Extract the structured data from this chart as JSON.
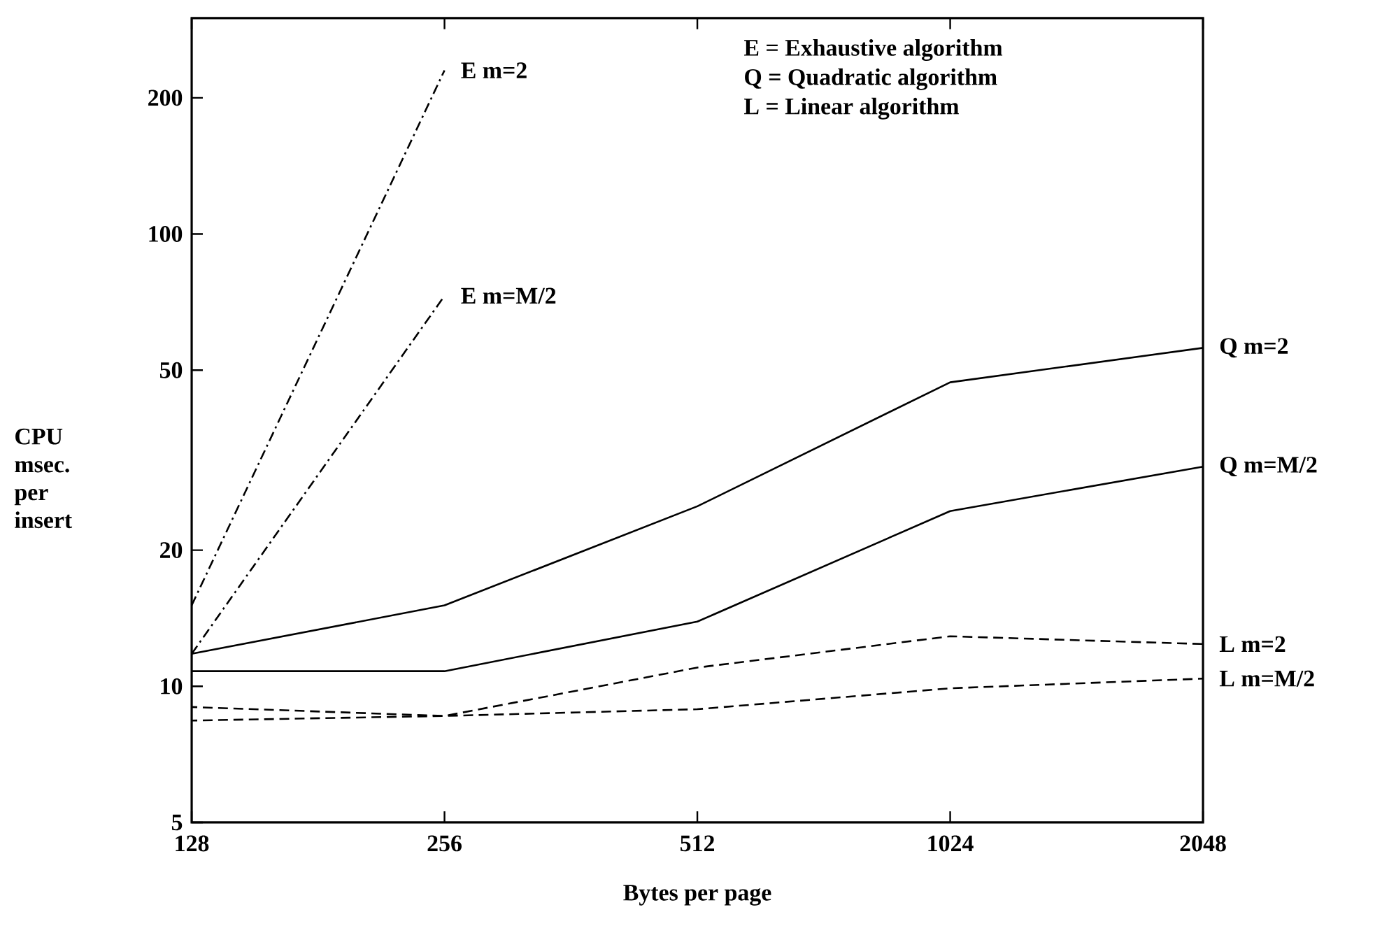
{
  "chart_data": {
    "type": "line",
    "xlabel": "Bytes per page",
    "ylabel": "CPU msec. per insert",
    "log": "xy",
    "x": [
      128,
      256,
      512,
      1024,
      2048
    ],
    "xlim": [
      128,
      2048
    ],
    "xticks": [
      128,
      256,
      512,
      1024,
      2048
    ],
    "ylim": [
      5,
      300
    ],
    "yticks": [
      5,
      10,
      20,
      50,
      100,
      200
    ],
    "grid": false,
    "legend": "right",
    "marker": "none",
    "annotations": [
      "E = Exhaustive algorithm",
      "Q = Quadratic algorithm",
      "L = Linear algorithm"
    ],
    "series": [
      {
        "name": "E m=2",
        "color": "#000000",
        "line_style": "dashdot",
        "values": [
          15.1,
          230,
          null,
          null,
          null
        ]
      },
      {
        "name": "E m=M/2",
        "color": "#000000",
        "line_style": "dashdot",
        "values": [
          11.8,
          73,
          null,
          null,
          null
        ]
      },
      {
        "name": "Q m=2",
        "color": "#000000",
        "line_style": "solid",
        "values": [
          11.8,
          15.1,
          25,
          47,
          56
        ]
      },
      {
        "name": "Q m=M/2",
        "color": "#000000",
        "line_style": "solid",
        "values": [
          10.8,
          10.8,
          13.9,
          24.4,
          30.6
        ]
      },
      {
        "name": "L m=2",
        "color": "#000000",
        "line_style": "dashed",
        "values": [
          9.0,
          8.6,
          11.0,
          12.9,
          12.4
        ]
      },
      {
        "name": "L m=M/2",
        "color": "#000000",
        "line_style": "dashed",
        "values": [
          8.4,
          8.6,
          8.9,
          9.9,
          10.4
        ]
      }
    ]
  }
}
